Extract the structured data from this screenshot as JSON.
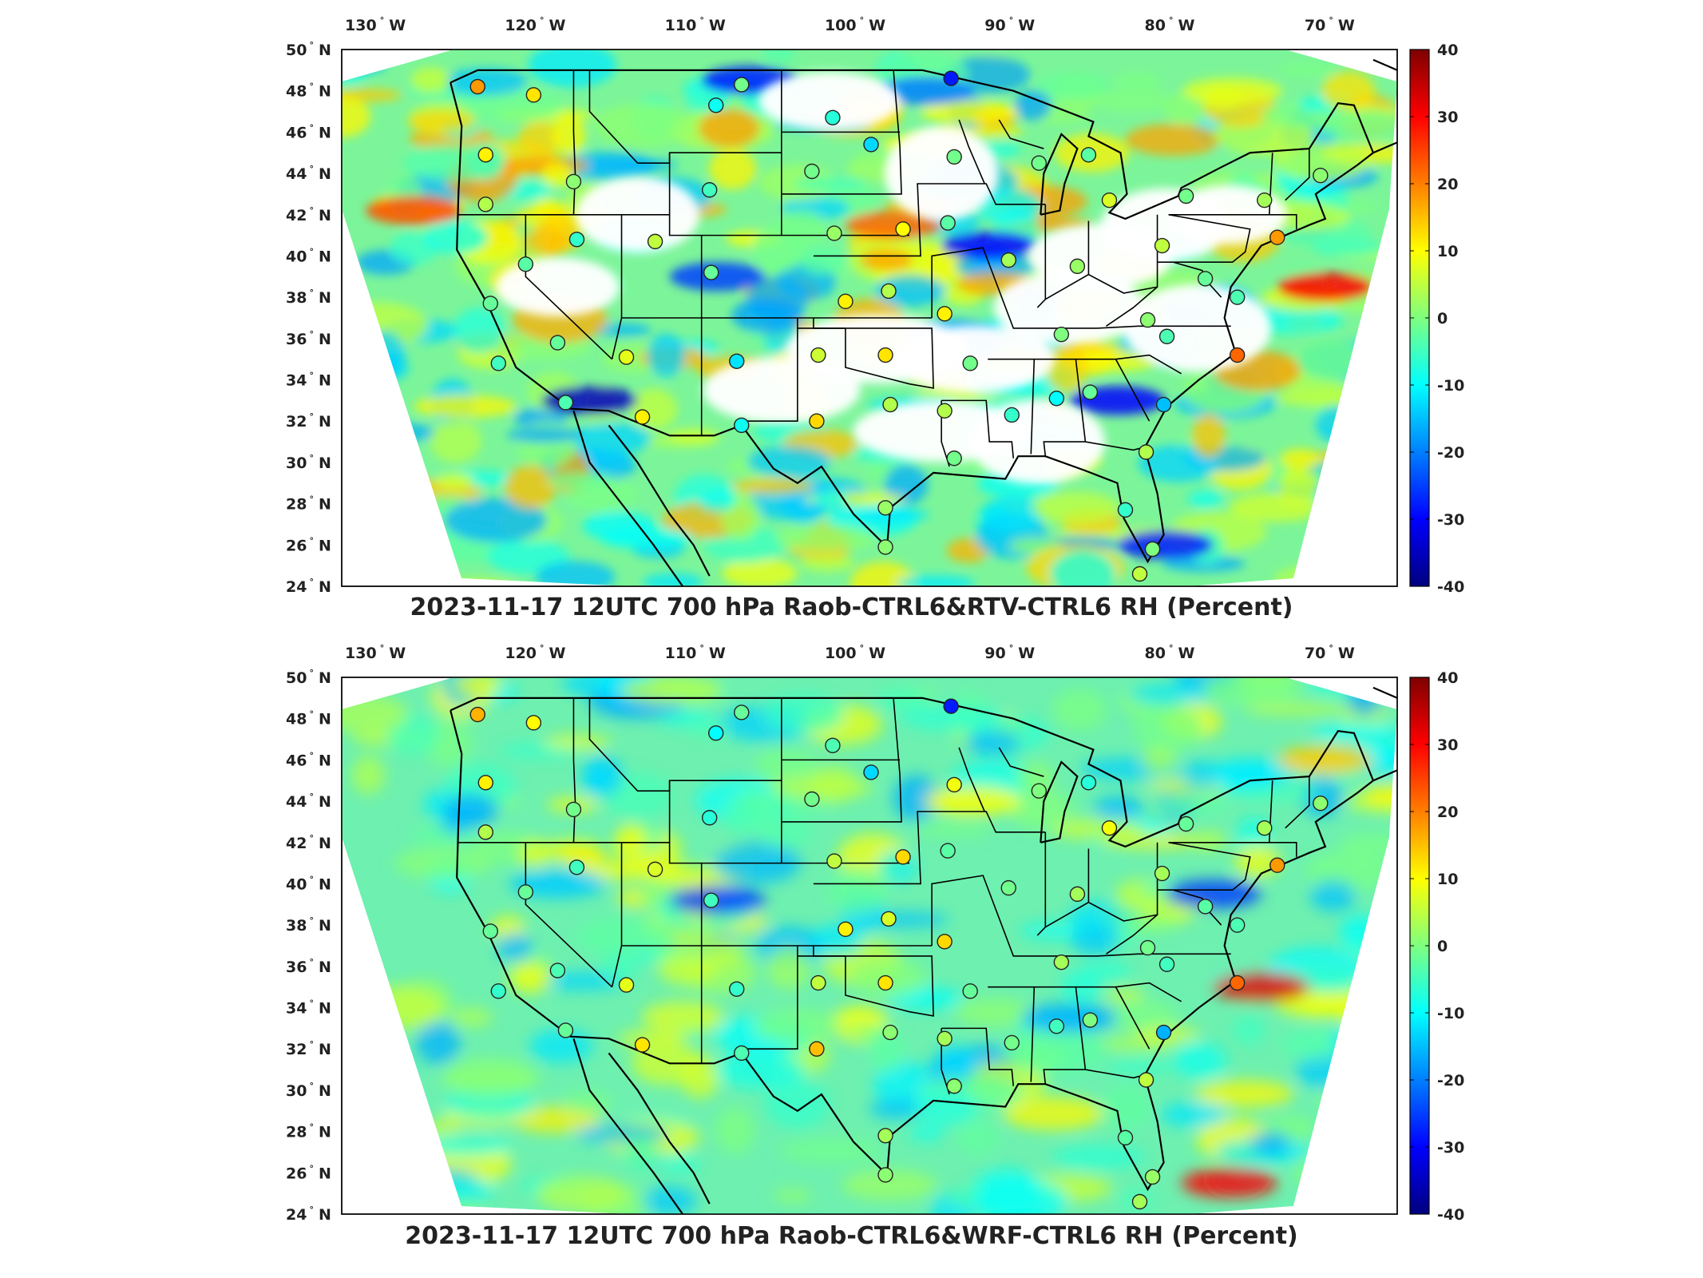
{
  "panels": [
    {
      "id": "top",
      "title": "2023-11-17 12UTC 700 hPa Raob-CTRL6&RTV-CTRL6 RH (Percent)"
    },
    {
      "id": "bottom",
      "title": "2023-11-17 12UTC 700 hPa Raob-CTRL6&WRF-CTRL6 RH (Percent)"
    }
  ],
  "lon_ticks": [
    "130",
    "120",
    "110",
    "100",
    "90",
    "80",
    "70"
  ],
  "lon_suffix": "W",
  "lat_ticks": [
    "50",
    "48",
    "46",
    "44",
    "42",
    "40",
    "38",
    "36",
    "34",
    "32",
    "30",
    "28",
    "26",
    "24"
  ],
  "lat_suffix": "N",
  "colorbar": {
    "ticks": [
      "40",
      "30",
      "20",
      "10",
      "0",
      "-10",
      "-20",
      "-30",
      "-40"
    ],
    "colormap": [
      "#7f0000",
      "#ff0000",
      "#ff7f00",
      "#ffff00",
      "#7fff7f",
      "#00ffff",
      "#007fff",
      "#0000ff",
      "#00007f"
    ]
  },
  "stations": [
    {
      "lon": -123,
      "lat": 48.2,
      "top": 18,
      "bottom": 16
    },
    {
      "lon": -119.5,
      "lat": 47.8,
      "top": 12,
      "bottom": 10
    },
    {
      "lon": -122.5,
      "lat": 44.9,
      "top": 11,
      "bottom": 11
    },
    {
      "lon": -122.5,
      "lat": 42.5,
      "top": 4,
      "bottom": 4
    },
    {
      "lon": -117,
      "lat": 43.6,
      "top": 1,
      "bottom": -1
    },
    {
      "lon": -116.8,
      "lat": 40.8,
      "top": -6,
      "bottom": -5
    },
    {
      "lon": -120,
      "lat": 39.6,
      "top": -3,
      "bottom": -2
    },
    {
      "lon": -118,
      "lat": 35.8,
      "top": -2,
      "bottom": -4
    },
    {
      "lon": -121.7,
      "lat": 34.8,
      "top": -5,
      "bottom": -6
    },
    {
      "lon": -117.5,
      "lat": 32.9,
      "top": -4,
      "bottom": -2
    },
    {
      "lon": -113.7,
      "lat": 35.1,
      "top": 8,
      "bottom": 8
    },
    {
      "lon": -112.7,
      "lat": 32.2,
      "top": 11,
      "bottom": 12
    },
    {
      "lon": -111.9,
      "lat": 40.7,
      "top": 5,
      "bottom": 7
    },
    {
      "lon": -108.4,
      "lat": 39.2,
      "top": -2,
      "bottom": -5
    },
    {
      "lon": -108.5,
      "lat": 43.2,
      "top": -5,
      "bottom": -7
    },
    {
      "lon": -106.8,
      "lat": 34.9,
      "top": -12,
      "bottom": -6
    },
    {
      "lon": -106.5,
      "lat": 31.8,
      "top": -9,
      "bottom": -4
    },
    {
      "lon": -108.1,
      "lat": 47.3,
      "top": -9,
      "bottom": -10
    },
    {
      "lon": -106.5,
      "lat": 48.3,
      "top": -1,
      "bottom": -2
    },
    {
      "lon": -102.1,
      "lat": 44.1,
      "top": -1,
      "bottom": -1
    },
    {
      "lon": -100.8,
      "lat": 46.7,
      "top": -7,
      "bottom": -4
    },
    {
      "lon": -98.4,
      "lat": 45.4,
      "top": -13,
      "bottom": -13
    },
    {
      "lon": -100.7,
      "lat": 41.1,
      "top": 2,
      "bottom": 5
    },
    {
      "lon": -96.4,
      "lat": 41.3,
      "top": 10,
      "bottom": 13
    },
    {
      "lon": -100,
      "lat": 37.8,
      "top": 11,
      "bottom": 11
    },
    {
      "lon": -97.3,
      "lat": 38.3,
      "top": 4,
      "bottom": 7
    },
    {
      "lon": -101.7,
      "lat": 35.2,
      "top": 6,
      "bottom": 5
    },
    {
      "lon": -97.5,
      "lat": 35.2,
      "top": 12,
      "bottom": 12
    },
    {
      "lon": -101.8,
      "lat": 32,
      "top": 13,
      "bottom": 15
    },
    {
      "lon": -97.2,
      "lat": 32.8,
      "top": 4,
      "bottom": 1
    },
    {
      "lon": -93.6,
      "lat": 41.6,
      "top": -3,
      "bottom": -3
    },
    {
      "lon": -93.2,
      "lat": 44.8,
      "top": -1,
      "bottom": 9
    },
    {
      "lon": -93.4,
      "lat": 48.6,
      "top": -28,
      "bottom": -28
    },
    {
      "lon": -89.8,
      "lat": 39.8,
      "top": 3,
      "bottom": -1
    },
    {
      "lon": -93.8,
      "lat": 37.2,
      "top": 11,
      "bottom": 13
    },
    {
      "lon": -92.2,
      "lat": 34.8,
      "top": -1,
      "bottom": -2
    },
    {
      "lon": -93.8,
      "lat": 32.5,
      "top": 4,
      "bottom": 3
    },
    {
      "lon": -89.6,
      "lat": 32.3,
      "top": -6,
      "bottom": -1
    },
    {
      "lon": -93.2,
      "lat": 30.2,
      "top": -1,
      "bottom": 1
    },
    {
      "lon": -87.9,
      "lat": 44.5,
      "top": -1,
      "bottom": 0
    },
    {
      "lon": -84.8,
      "lat": 44.9,
      "top": -3,
      "bottom": -7
    },
    {
      "lon": -83.5,
      "lat": 42.7,
      "top": 7,
      "bottom": 9
    },
    {
      "lon": -80.2,
      "lat": 40.5,
      "top": 5,
      "bottom": 3
    },
    {
      "lon": -85.5,
      "lat": 39.5,
      "top": 2,
      "bottom": 3
    },
    {
      "lon": -86.5,
      "lat": 36.2,
      "top": 0,
      "bottom": 3
    },
    {
      "lon": -86.8,
      "lat": 33.1,
      "top": -10,
      "bottom": -5
    },
    {
      "lon": -84.7,
      "lat": 33.4,
      "top": -2,
      "bottom": 0
    },
    {
      "lon": -81.1,
      "lat": 36.9,
      "top": 1,
      "bottom": -1
    },
    {
      "lon": -79.9,
      "lat": 36.1,
      "top": -4,
      "bottom": -5
    },
    {
      "lon": -80.1,
      "lat": 32.8,
      "top": -15,
      "bottom": -16
    },
    {
      "lon": -81.2,
      "lat": 30.5,
      "top": 4,
      "bottom": 5
    },
    {
      "lon": -82.5,
      "lat": 27.7,
      "top": -6,
      "bottom": -3
    },
    {
      "lon": -80.8,
      "lat": 25.8,
      "top": 0,
      "bottom": 2
    },
    {
      "lon": -81.6,
      "lat": 24.6,
      "top": 5,
      "bottom": 3
    },
    {
      "lon": -97.5,
      "lat": 27.8,
      "top": 2,
      "bottom": 3
    },
    {
      "lon": -97.5,
      "lat": 25.9,
      "top": 1,
      "bottom": 1
    },
    {
      "lon": -78.7,
      "lat": 42.9,
      "top": -1,
      "bottom": -2
    },
    {
      "lon": -73.8,
      "lat": 42.7,
      "top": 3,
      "bottom": 3
    },
    {
      "lon": -77.5,
      "lat": 38.9,
      "top": -2,
      "bottom": -3
    },
    {
      "lon": -75.5,
      "lat": 38,
      "top": -4,
      "bottom": -4
    },
    {
      "lon": -73,
      "lat": 40.9,
      "top": 18,
      "bottom": 18
    },
    {
      "lon": -75.5,
      "lat": 35.2,
      "top": 22,
      "bottom": 22
    },
    {
      "lon": -70.3,
      "lat": 43.9,
      "top": 1,
      "bottom": 1
    },
    {
      "lon": -122.2,
      "lat": 37.7,
      "top": -2,
      "bottom": -2
    }
  ]
}
